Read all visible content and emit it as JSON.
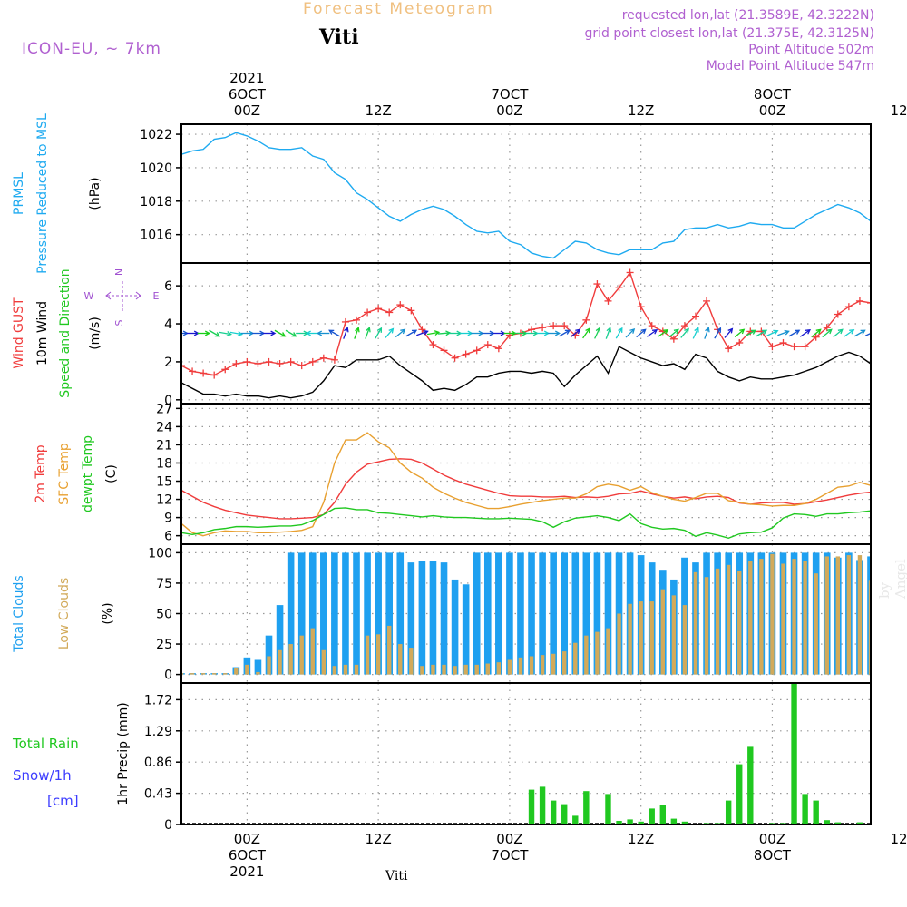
{
  "header": {
    "model": "ICON-EU, ~ 7km",
    "title": "Forecast Meteogram",
    "station": "Viti",
    "requested": "requested lon,lat (21.3589E, 42.3222N)",
    "grid_point": "grid point closest lon,lat (21.375E, 42.3125N)",
    "point_altitude": "Point Altitude 502m",
    "model_altitude": "Model Point Altitude 547m",
    "signature": "by Angel",
    "footer_station": "Viti"
  },
  "time_axis": {
    "start_hour": -6,
    "end_hour": 57,
    "top_labels": [
      {
        "hour": 0,
        "lines": [
          "2021",
          "6OCT",
          "00Z"
        ]
      },
      {
        "hour": 12,
        "lines": [
          "12Z"
        ]
      },
      {
        "hour": 24,
        "lines": [
          "7OCT",
          "00Z"
        ]
      },
      {
        "hour": 36,
        "lines": [
          "12Z"
        ]
      },
      {
        "hour": 48,
        "lines": [
          "8OCT",
          "00Z"
        ]
      },
      {
        "hour": 60,
        "lines": [
          "12Z"
        ]
      }
    ],
    "bottom_labels": [
      {
        "hour": 0,
        "lines": [
          "00Z",
          "6OCT",
          "2021"
        ]
      },
      {
        "hour": 12,
        "lines": [
          "12Z"
        ]
      },
      {
        "hour": 24,
        "lines": [
          "00Z",
          "7OCT"
        ]
      },
      {
        "hour": 36,
        "lines": [
          "12Z"
        ]
      },
      {
        "hour": 48,
        "lines": [
          "00Z",
          "8OCT"
        ]
      },
      {
        "hour": 60,
        "lines": [
          "12Z"
        ]
      }
    ]
  },
  "colors": {
    "pressure": "#1eaaf0",
    "gust": "#f03c3c",
    "wind": "#000000",
    "t2m": "#f03c3c",
    "sfc": "#e8a030",
    "dew": "#20c820",
    "total_clouds": "#1ea0f0",
    "low_clouds": "#d2aa5a",
    "rain": "#20c820",
    "snow": "#3c3cff",
    "compass": "#a050d0"
  },
  "chart_data": [
    {
      "type": "line",
      "id": "pressure",
      "ylabel_lines": [
        {
          "text": "PRMSL",
          "color": "#1eaaf0"
        },
        {
          "text": "Pressure Reduced to MSL",
          "color": "#1eaaf0"
        },
        {
          "text": "(hPa)",
          "color": "#000000"
        }
      ],
      "y_ticks": [
        1016,
        1018,
        1020,
        1022
      ],
      "ylim": [
        1014.3,
        1022.6
      ],
      "series": [
        {
          "name": "PRMSL",
          "color": "#1eaaf0",
          "x_start": -11,
          "step": 1,
          "values": [
            1019.8,
            1019.1,
            1018.8,
            1019.0,
            1020.2,
            1020.8,
            1021.0,
            1021.1,
            1021.7,
            1021.8,
            1022.1,
            1021.9,
            1021.6,
            1021.2,
            1021.1,
            1021.1,
            1021.2,
            1020.7,
            1020.5,
            1019.7,
            1019.3,
            1018.5,
            1018.1,
            1017.6,
            1017.1,
            1016.8,
            1017.2,
            1017.5,
            1017.7,
            1017.5,
            1017.1,
            1016.6,
            1016.2,
            1016.1,
            1016.2,
            1015.6,
            1015.4,
            1014.9,
            1014.7,
            1014.6,
            1015.1,
            1015.6,
            1015.5,
            1015.1,
            1014.9,
            1014.8,
            1015.1,
            1015.1,
            1015.1,
            1015.5,
            1015.6,
            1016.3,
            1016.4,
            1016.4,
            1016.6,
            1016.4,
            1016.5,
            1016.7,
            1016.6,
            1016.6,
            1016.4,
            1016.4,
            1016.8,
            1017.2,
            1017.5,
            1017.8,
            1017.6,
            1017.3,
            1016.8,
            1016.5,
            1016.3,
            1016.4,
            1016.6,
            1016.9,
            1017.2
          ]
        }
      ]
    },
    {
      "type": "line",
      "id": "wind",
      "ylabel_lines": [
        {
          "text": "Wind GUST",
          "color": "#f03c3c"
        },
        {
          "text": "10m Wind",
          "color": "#000000"
        },
        {
          "text": "Speed and Direction",
          "color": "#20c820"
        },
        {
          "text": "(m/s)",
          "color": "#000000"
        }
      ],
      "compass": {
        "n": "N",
        "s": "S",
        "w": "W",
        "e": "E"
      },
      "y_ticks": [
        0,
        2,
        4,
        6
      ],
      "ylim": [
        -0.2,
        7.2
      ],
      "series": [
        {
          "name": "Wind GUST",
          "color": "#f03c3c",
          "x_start": -11,
          "step": 1,
          "markers": true,
          "values": [
            1.8,
            2.7,
            3.1,
            2.4,
            2.5,
            1.8,
            1.5,
            1.4,
            1.3,
            1.6,
            1.9,
            2.0,
            1.9,
            2.0,
            1.9,
            2.0,
            1.8,
            2.0,
            2.2,
            2.1,
            4.1,
            4.2,
            4.6,
            4.8,
            4.6,
            5.0,
            4.7,
            3.7,
            2.9,
            2.6,
            2.2,
            2.4,
            2.6,
            2.9,
            2.7,
            3.4,
            3.5,
            3.7,
            3.8,
            3.9,
            3.9,
            3.4,
            4.2,
            6.1,
            5.2,
            5.9,
            6.7,
            4.9,
            3.9,
            3.6,
            3.2,
            3.9,
            4.4,
            5.2,
            3.7,
            2.7,
            3.0,
            3.6,
            3.6,
            2.8,
            3.0,
            2.8,
            2.8,
            3.3,
            3.8,
            4.5,
            4.9,
            5.2,
            5.1,
            4.8,
            3.9,
            3.4,
            3.7,
            3.3,
            2.7
          ]
        },
        {
          "name": "10m Wind",
          "color": "#000000",
          "x_start": -11,
          "step": 1,
          "markers": false,
          "values": [
            0.5,
            1.1,
            1.2,
            1.1,
            1.6,
            0.9,
            0.6,
            0.3,
            0.3,
            0.2,
            0.3,
            0.2,
            0.2,
            0.1,
            0.2,
            0.1,
            0.2,
            0.4,
            1.0,
            1.8,
            1.7,
            2.1,
            2.1,
            2.1,
            2.3,
            1.8,
            1.4,
            1.0,
            0.5,
            0.6,
            0.5,
            0.8,
            1.2,
            1.2,
            1.4,
            1.5,
            1.5,
            1.4,
            1.5,
            1.4,
            0.7,
            1.3,
            1.8,
            2.3,
            1.4,
            2.8,
            2.5,
            2.2,
            2.0,
            1.8,
            1.9,
            1.6,
            2.4,
            2.2,
            1.5,
            1.2,
            1.0,
            1.2,
            1.1,
            1.1,
            1.2,
            1.3,
            1.5,
            1.7,
            2.0,
            2.3,
            2.5,
            2.3,
            1.9,
            1.3,
            1.5,
            1.7,
            1.4,
            1.0
          ]
        }
      ],
      "arrows": {
        "x_start": -11,
        "step": 1,
        "y_value": 3.5,
        "directions_deg": [
          270,
          250,
          200,
          160,
          180,
          270,
          270,
          270,
          300,
          280,
          280,
          270,
          270,
          270,
          300,
          300,
          270,
          90,
          90,
          120,
          200,
          200,
          200,
          210,
          220,
          230,
          240,
          250,
          260,
          265,
          270,
          270,
          270,
          270,
          270,
          270,
          270,
          270,
          270,
          270,
          240,
          230,
          215,
          205,
          200,
          210,
          225,
          230,
          235,
          235,
          230,
          220,
          205,
          200,
          210,
          220,
          230,
          240,
          240,
          245,
          250,
          240,
          235,
          230,
          230,
          230,
          235,
          240,
          245,
          250,
          255,
          260,
          265,
          270
        ]
      }
    },
    {
      "type": "line",
      "id": "temperature",
      "ylabel_lines": [
        {
          "text": "2m Temp",
          "color": "#f03c3c"
        },
        {
          "text": "SFC Temp",
          "color": "#e8a030"
        },
        {
          "text": "dewpt Temp",
          "color": "#20c820"
        },
        {
          "text": "(C)",
          "color": "#000000"
        }
      ],
      "y_ticks": [
        6,
        9,
        12,
        15,
        18,
        21,
        24,
        27
      ],
      "ylim": [
        4.6,
        27.8
      ],
      "series": [
        {
          "name": "2m Temp",
          "color": "#f03c3c",
          "x_start": -11,
          "step": 1,
          "values": [
            22.5,
            22.0,
            20.5,
            18.0,
            15.0,
            13.5,
            12.5,
            11.5,
            10.8,
            10.2,
            9.8,
            9.4,
            9.2,
            9.0,
            8.8,
            8.8,
            8.9,
            9.0,
            9.5,
            11.5,
            14.5,
            16.5,
            17.8,
            18.2,
            18.6,
            18.7,
            18.6,
            18.0,
            17.0,
            16.0,
            15.2,
            14.5,
            14.0,
            13.5,
            13.0,
            12.6,
            12.5,
            12.5,
            12.4,
            12.4,
            12.5,
            12.3,
            12.4,
            12.3,
            12.5,
            12.9,
            13.0,
            13.4,
            12.9,
            12.5,
            12.2,
            12.4,
            12.1,
            12.4,
            12.5,
            12.3,
            11.4,
            11.2,
            11.4,
            11.5,
            11.5,
            11.2,
            11.3,
            11.6,
            11.9,
            12.3,
            12.7,
            13.0,
            13.2,
            13.3,
            13.2,
            12.6,
            12.3,
            11.8,
            11.5
          ]
        },
        {
          "name": "SFC Temp",
          "color": "#e8a030",
          "x_start": -11,
          "step": 1,
          "values": [
            27.5,
            25.0,
            20.5,
            15.0,
            11.0,
            8.0,
            6.5,
            6.0,
            6.5,
            6.8,
            6.7,
            6.7,
            6.5,
            6.5,
            6.6,
            6.7,
            6.9,
            7.5,
            11.5,
            18.0,
            21.8,
            21.8,
            23.0,
            21.5,
            20.5,
            18.0,
            16.5,
            15.5,
            14.0,
            13.0,
            12.2,
            11.5,
            11.0,
            10.5,
            10.5,
            10.8,
            11.2,
            11.5,
            11.8,
            12.0,
            12.2,
            12.2,
            12.9,
            14.1,
            14.5,
            14.2,
            13.5,
            14.1,
            13.1,
            12.5,
            12.0,
            11.7,
            12.3,
            13.0,
            13.0,
            11.8,
            11.5,
            11.2,
            11.1,
            10.9,
            11.0,
            11.0,
            11.3,
            12.0,
            13.0,
            14.0,
            14.2,
            14.8,
            14.3,
            13.5,
            13.0,
            12.6,
            12.2,
            11.5,
            11.3
          ]
        },
        {
          "name": "dewpt Temp",
          "color": "#20c820",
          "x_start": -11,
          "step": 1,
          "values": [
            11.3,
            10.0,
            9.0,
            8.8,
            7.0,
            6.5,
            6.2,
            6.5,
            7.0,
            7.2,
            7.5,
            7.5,
            7.4,
            7.5,
            7.6,
            7.6,
            7.8,
            8.5,
            9.5,
            10.5,
            10.6,
            10.3,
            10.3,
            9.8,
            9.7,
            9.5,
            9.3,
            9.1,
            9.3,
            9.1,
            9.0,
            9.0,
            8.9,
            8.8,
            8.8,
            8.9,
            8.8,
            8.7,
            8.3,
            7.4,
            8.3,
            8.9,
            9.1,
            9.3,
            9.0,
            8.5,
            9.6,
            8.0,
            7.4,
            7.1,
            7.2,
            6.9,
            5.9,
            6.5,
            6.1,
            5.6,
            6.3,
            6.5,
            6.6,
            7.3,
            8.9,
            9.6,
            9.5,
            9.2,
            9.6,
            9.6,
            9.8,
            9.9,
            10.1,
            10.2,
            9.9,
            9.7,
            10.4,
            10.5,
            10.1
          ]
        }
      ]
    },
    {
      "type": "bar",
      "id": "clouds",
      "ylabel_lines": [
        {
          "text": "Total Clouds",
          "color": "#1ea0f0"
        },
        {
          "text": "Low Clouds",
          "color": "#d2aa5a"
        },
        {
          "text": "(%)",
          "color": "#000000"
        }
      ],
      "y_ticks": [
        0,
        25,
        50,
        75,
        100
      ],
      "ylim": [
        -7,
        107
      ],
      "x_start": -11,
      "step": 1,
      "series": [
        {
          "name": "Total Clouds",
          "color": "#1ea0f0",
          "values": [
            15,
            15,
            0,
            0,
            0,
            0,
            0,
            0,
            0,
            0,
            6,
            14,
            12,
            32,
            57,
            100,
            100,
            100,
            100,
            100,
            100,
            100,
            100,
            100,
            100,
            100,
            92,
            93,
            93,
            92,
            78,
            74,
            100,
            100,
            100,
            100,
            100,
            100,
            100,
            100,
            100,
            100,
            100,
            100,
            100,
            100,
            100,
            98,
            92,
            86,
            78,
            96,
            92,
            100,
            100,
            100,
            100,
            100,
            100,
            100,
            100,
            100,
            100,
            100,
            100,
            96,
            100,
            94,
            97,
            100,
            100,
            100,
            100,
            100,
            100
          ]
        },
        {
          "name": "Low Clouds",
          "color": "#d2aa5a",
          "values": [
            29,
            15,
            0,
            0,
            0,
            0,
            0,
            0,
            0,
            0,
            5,
            8,
            2,
            15,
            20,
            25,
            32,
            38,
            20,
            7,
            8,
            8,
            32,
            33,
            40,
            25,
            22,
            7,
            8,
            8,
            7,
            8,
            8,
            9,
            10,
            12,
            14,
            15,
            16,
            17,
            19,
            26,
            32,
            35,
            38,
            50,
            58,
            60,
            60,
            70,
            65,
            57,
            84,
            80,
            87,
            90,
            85,
            93,
            95,
            99,
            91,
            95,
            93,
            83,
            97,
            97,
            98,
            98,
            77,
            84,
            83,
            94,
            80,
            90,
            90
          ]
        }
      ]
    },
    {
      "type": "bar",
      "id": "precip",
      "ylabel_lines": [
        {
          "text": "1hr Precip (mm)",
          "color": "#000000"
        }
      ],
      "legend_lines": [
        {
          "text": "Total   Rain",
          "color": "#20c820"
        },
        {
          "text": "Snow/1h",
          "color": "#3c3cff"
        },
        {
          "text": "[cm]",
          "color": "#3c3cff"
        }
      ],
      "y_ticks": [
        "0",
        "0.43",
        "0.86",
        "1.29",
        "1.72"
      ],
      "y_tick_values": [
        0,
        0.43,
        0.86,
        1.29,
        1.72
      ],
      "ylim": [
        0,
        1.95
      ],
      "series": [
        {
          "name": "Total Rain",
          "color": "#20c820",
          "points": [
            [
              26,
              0.48
            ],
            [
              27,
              0.52
            ],
            [
              28,
              0.33
            ],
            [
              29,
              0.28
            ],
            [
              30,
              0.12
            ],
            [
              31,
              0.46
            ],
            [
              33,
              0.42
            ],
            [
              34,
              0.05
            ],
            [
              35,
              0.07
            ],
            [
              36,
              0.04
            ],
            [
              37,
              0.22
            ],
            [
              38,
              0.27
            ],
            [
              39,
              0.08
            ],
            [
              40,
              0.04
            ],
            [
              42,
              0.02
            ],
            [
              43,
              0.02
            ],
            [
              44,
              0.33
            ],
            [
              45,
              0.83
            ],
            [
              46,
              1.07
            ],
            [
              48,
              0.02
            ],
            [
              49,
              0.02
            ],
            [
              50,
              1.97
            ],
            [
              51,
              0.42
            ],
            [
              52,
              0.33
            ],
            [
              53,
              0.06
            ],
            [
              54,
              0.03
            ],
            [
              56,
              0.03
            ],
            [
              63,
              0.09
            ],
            [
              64,
              0.86
            ]
          ]
        }
      ]
    }
  ]
}
